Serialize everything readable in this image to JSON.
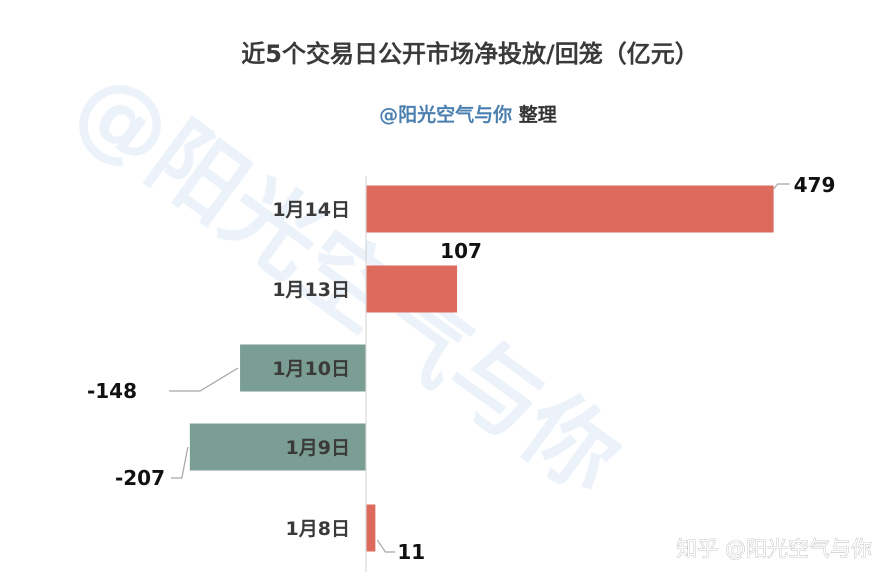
{
  "title": "近5个交易日公开市场净投放/回笼（亿元）",
  "subtitle": {
    "accent": "@阳光空气与你",
    "rest": " 整理"
  },
  "watermark": "@阳光空气与你",
  "footer_mark": "知乎 @阳光空气与你",
  "colors": {
    "positive": "#dd6b5d",
    "negative": "#7b9e94",
    "axis": "#d9d9d9",
    "leader": "#a6a6a6"
  },
  "chart_data": {
    "type": "bar",
    "orientation": "horizontal",
    "categories": [
      "1月14日",
      "1月13日",
      "1月10日",
      "1月9日",
      "1月8日"
    ],
    "values": [
      479,
      107,
      -148,
      -207,
      11
    ],
    "title": "近5个交易日公开市场净投放/回笼（亿元）",
    "xlabel": "",
    "ylabel": "",
    "grid": false,
    "legend": "none"
  }
}
